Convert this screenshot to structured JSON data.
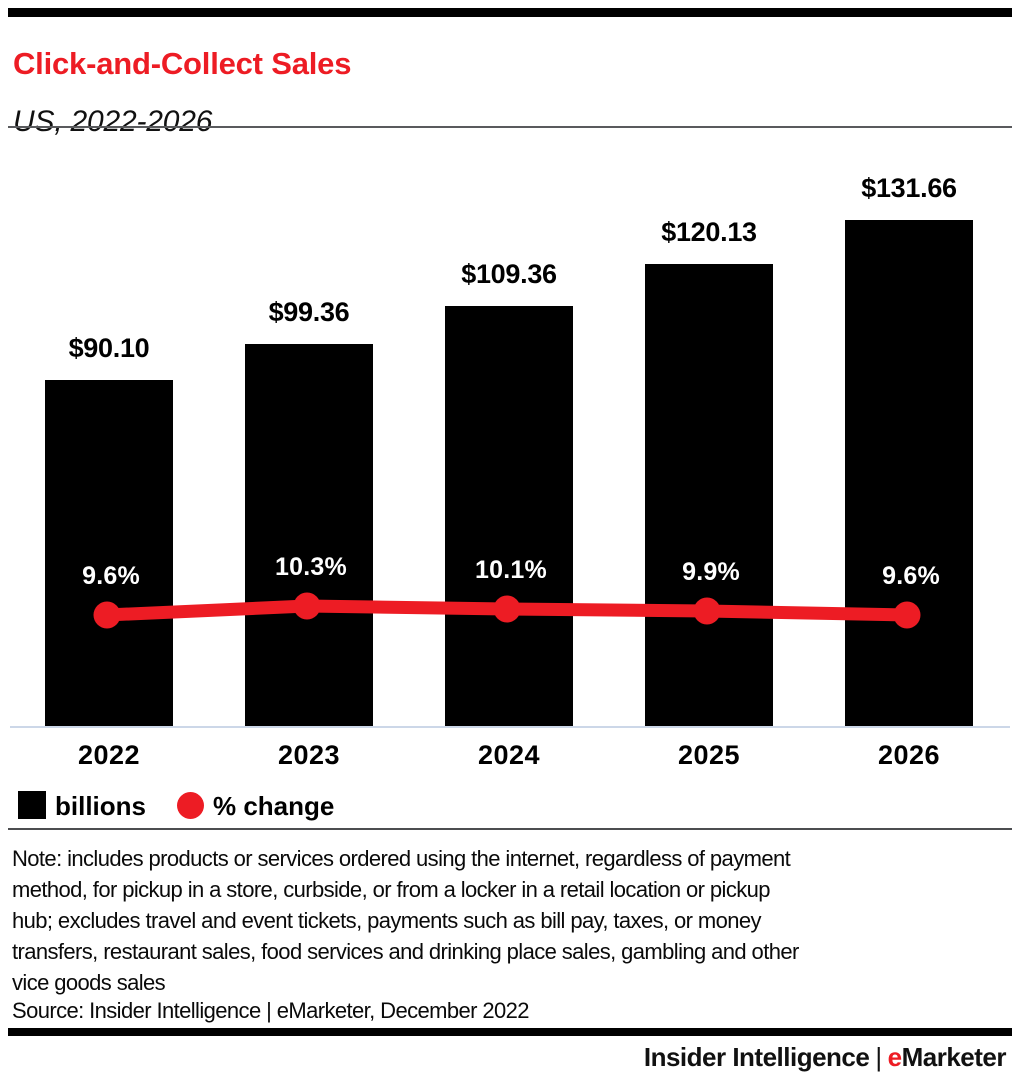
{
  "header": {
    "title": "Click-and-Collect Sales",
    "subtitle": "US, 2022-2026"
  },
  "chart_data": {
    "type": "bar",
    "title": "Click-and-Collect Sales",
    "subtitle": "US, 2022-2026",
    "categories": [
      "2022",
      "2023",
      "2024",
      "2025",
      "2026"
    ],
    "series": [
      {
        "name": "billions",
        "type": "bar",
        "color": "#000000",
        "values": [
          90.1,
          99.36,
          109.36,
          120.13,
          131.66
        ],
        "labels": [
          "$90.10",
          "$99.36",
          "$109.36",
          "$120.13",
          "$131.66"
        ]
      },
      {
        "name": "% change",
        "type": "line",
        "color": "#ed1c24",
        "values": [
          9.6,
          10.3,
          10.1,
          9.9,
          9.6
        ],
        "labels": [
          "9.6%",
          "10.3%",
          "10.1%",
          "9.9%",
          "9.6%"
        ]
      }
    ],
    "grid": false,
    "legend_position": "bottom",
    "ylim_bars": [
      0,
      131.66
    ],
    "units": "US$ billions and % change"
  },
  "legend": {
    "items": [
      {
        "label": "billions",
        "swatch": "black-square",
        "color": "#000000"
      },
      {
        "label": "% change",
        "swatch": "red-circle",
        "color": "#ed1c24"
      }
    ]
  },
  "footnotes": {
    "note_lines": [
      "Note: includes products or services ordered using the internet, regardless of payment",
      "method, for pickup in a store, curbside, or from a locker in a retail location or pickup",
      "hub; excludes travel and event tickets, payments such as bill pay, taxes, or money",
      "transfers, restaurant sales, food services and drinking place sales, gambling and other",
      "vice goods sales"
    ],
    "source": "Source: Insider Intelligence | eMarketer, December 2022"
  },
  "footer": {
    "brand_left": "Insider Intelligence",
    "separator": "|",
    "brand_e": "e",
    "brand_rest": "Marketer"
  },
  "colors": {
    "accent_red": "#ed1c24",
    "bar_black": "#000000",
    "axis_line": "#ccd7e8",
    "title_red": "#ed1c24"
  }
}
